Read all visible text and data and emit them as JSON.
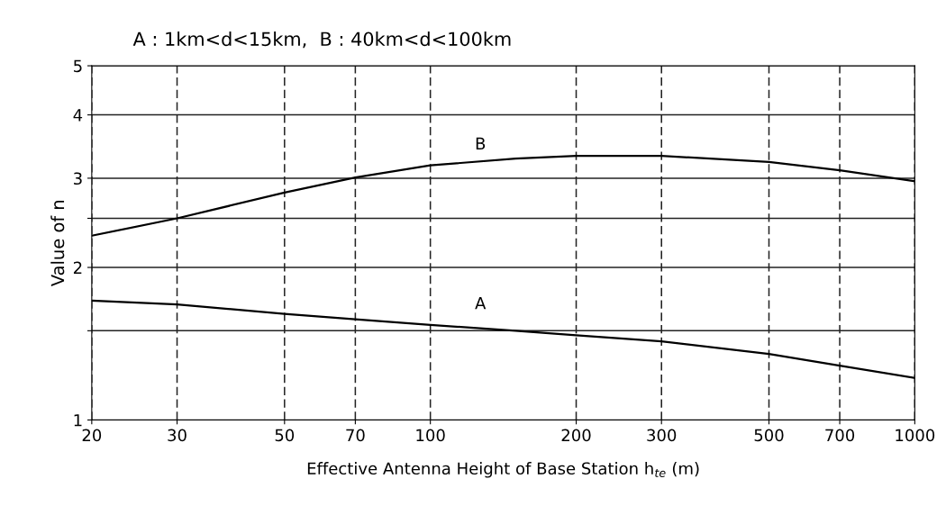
{
  "chart_data": {
    "type": "line",
    "title": "A : 1km<d<15km,  B : 40km<d<100km",
    "xlabel": "Effective Antenna Height of Base Station h$_{te}$ (m)",
    "ylabel": "Value of n",
    "log": "xy",
    "xlim": [
      20,
      1000
    ],
    "ylim": [
      1,
      5
    ],
    "xticks": [
      20,
      30,
      50,
      70,
      100,
      200,
      300,
      500,
      700,
      1000
    ],
    "yticks": [
      1,
      {
        "value": 1.5,
        "label": null
      },
      2,
      {
        "value": 2.5,
        "label": null
      },
      3,
      4,
      5
    ],
    "grid": true,
    "legend": false,
    "marker": "none",
    "line_style": "solid",
    "x": [
      20,
      30,
      50,
      70,
      100,
      150,
      200,
      300,
      500,
      700,
      1000
    ],
    "series": [
      {
        "name": "B",
        "color": "#000000",
        "values": [
          2.31,
          2.5,
          2.81,
          3.01,
          3.18,
          3.28,
          3.32,
          3.32,
          3.23,
          3.11,
          2.96
        ]
      },
      {
        "name": "A",
        "color": "#000000",
        "values": [
          1.72,
          1.69,
          1.62,
          1.58,
          1.54,
          1.5,
          1.47,
          1.43,
          1.35,
          1.28,
          1.21
        ]
      }
    ]
  }
}
